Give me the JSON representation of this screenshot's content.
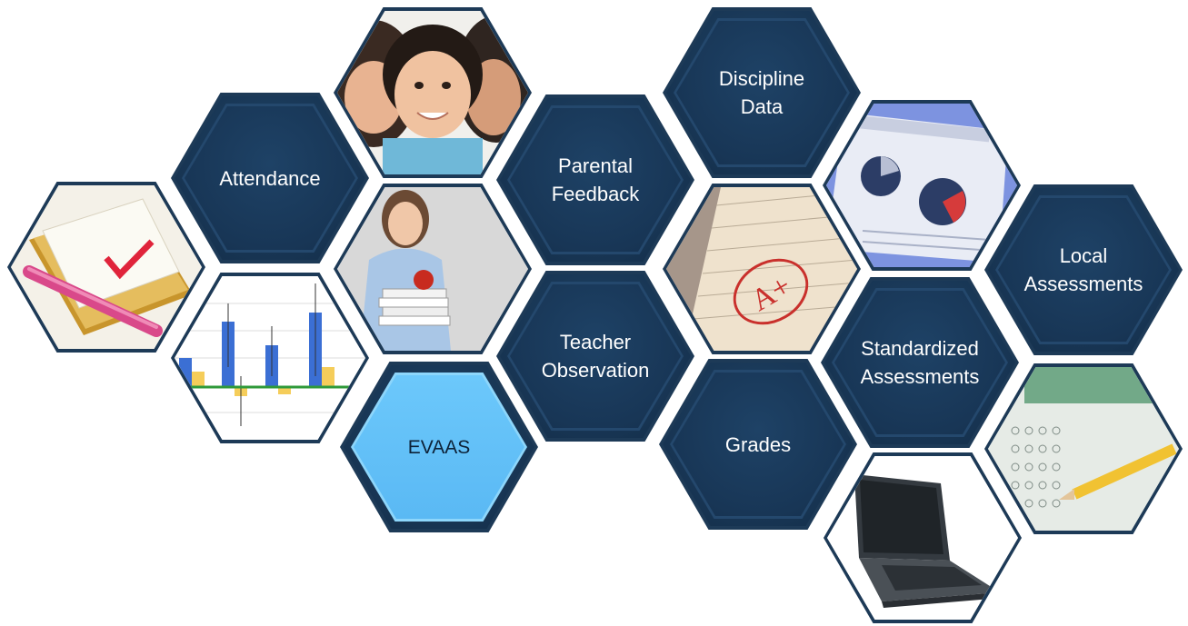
{
  "diagram": {
    "labels": {
      "attendance": "Attendance",
      "parental_feedback": "Parental\nFeedback",
      "discipline_data": "Discipline\nData",
      "local_assessments": "Local\nAssessments",
      "teacher_observation": "Teacher\nObservation",
      "standardized_assessments": "Standardized\nAssessments",
      "evaas": "EVAAS",
      "grades": "Grades"
    },
    "colors": {
      "hex_dark": "#173452",
      "hex_border": "#1d3a57",
      "hex_accent": "#5ab9f4",
      "label_light": "#ffffff",
      "label_dark": "#0d2238"
    },
    "photos": [
      "checklist-clipboard-image",
      "family-kiss-image",
      "teacher-with-books-image",
      "bar-chart-image",
      "graded-paper-a-plus-image",
      "pie-chart-report-image",
      "answer-sheet-pencil-image",
      "laptop-image"
    ]
  }
}
